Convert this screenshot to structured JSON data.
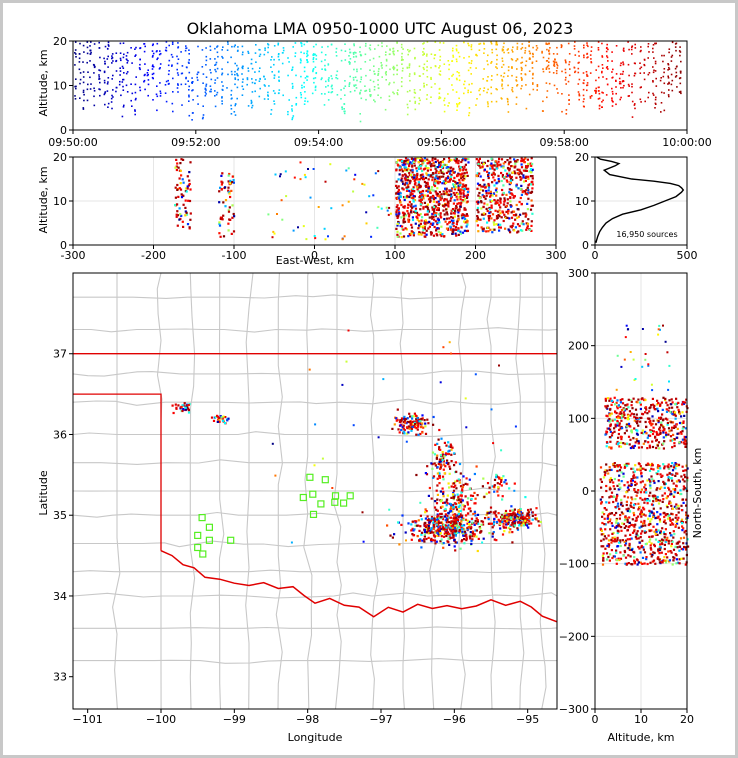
{
  "title": "Oklahoma LMA 0950-1000 UTC August 06, 2023",
  "source_count_label": "16,950 sources",
  "chart_data": [
    {
      "panel": "time-altitude",
      "type": "scatter",
      "ylabel": "Altitude, km",
      "xlim": [
        "09:50:00",
        "10:00:00"
      ],
      "ylim": [
        0,
        20
      ],
      "xticks": [
        "09:50:00",
        "09:52:00",
        "09:54:00",
        "09:56:00",
        "09:58:00",
        "10:00:00"
      ],
      "yticks": [
        0,
        10,
        20
      ],
      "color_encoding": "time (blue early to red late)",
      "note": "dense vertical streaks of sources at approximately 2-20 km throughout the period"
    },
    {
      "panel": "east-west-altitude",
      "type": "scatter",
      "xlabel": "East-West, km",
      "ylabel": "Altitude, km",
      "xlim": [
        -300,
        300
      ],
      "ylim": [
        0,
        20
      ],
      "xticks": [
        -300,
        -200,
        -100,
        0,
        100,
        200,
        300
      ],
      "yticks": [
        0,
        10,
        20
      ],
      "clusters": [
        {
          "x_range": [
            -175,
            -155
          ],
          "alt_range": [
            3,
            20
          ]
        },
        {
          "x_range": [
            -120,
            -100
          ],
          "alt_range": [
            2,
            17
          ]
        },
        {
          "x_range": [
            100,
            190
          ],
          "alt_range": [
            2,
            20
          ]
        },
        {
          "x_range": [
            200,
            270
          ],
          "alt_range": [
            3,
            20
          ]
        }
      ]
    },
    {
      "panel": "altitude-histogram",
      "type": "line",
      "xlim": [
        0,
        500
      ],
      "ylim": [
        0,
        20
      ],
      "xticks": [
        0,
        500
      ],
      "yticks": [
        0,
        10,
        20
      ],
      "altitude": [
        0.5,
        1,
        2,
        3,
        4,
        5,
        6,
        7,
        8,
        9,
        10,
        11,
        12,
        12.5,
        13,
        13.5,
        14,
        14.5,
        15,
        16,
        17,
        18,
        18.5,
        19,
        19.5,
        20
      ],
      "count": [
        5,
        8,
        15,
        25,
        40,
        60,
        95,
        150,
        250,
        320,
        380,
        440,
        470,
        480,
        470,
        455,
        410,
        320,
        200,
        80,
        50,
        110,
        130,
        90,
        30,
        10
      ]
    },
    {
      "panel": "plan-view",
      "type": "scatter",
      "xlabel": "Longitude",
      "ylabel": "Latitude",
      "xlim": [
        -101.2,
        -94.6
      ],
      "ylim": [
        32.6,
        38.0
      ],
      "xticks": [
        -101,
        -100,
        -99,
        -98,
        -97,
        -96,
        -95
      ],
      "yticks": [
        33,
        34,
        35,
        36,
        37
      ],
      "clusters": [
        {
          "lon": -96.1,
          "lat": 34.85,
          "n": 420,
          "spread": [
            0.55,
            0.2
          ]
        },
        {
          "lon": -95.2,
          "lat": 34.97,
          "n": 220,
          "spread": [
            0.3,
            0.12
          ]
        },
        {
          "lon": -96.0,
          "lat": 35.2,
          "n": 180,
          "spread": [
            0.3,
            0.35
          ]
        },
        {
          "lon": -96.6,
          "lat": 36.15,
          "n": 120,
          "spread": [
            0.25,
            0.12
          ]
        },
        {
          "lon": -96.2,
          "lat": 35.7,
          "n": 90,
          "spread": [
            0.2,
            0.25
          ]
        },
        {
          "lon": -99.2,
          "lat": 36.2,
          "n": 30,
          "spread": [
            0.1,
            0.06
          ]
        },
        {
          "lon": -99.7,
          "lat": 36.35,
          "n": 30,
          "spread": [
            0.12,
            0.08
          ]
        },
        {
          "lon": -95.4,
          "lat": 35.4,
          "n": 40,
          "spread": [
            0.25,
            0.15
          ]
        }
      ],
      "stations": [
        [
          -97.97,
          35.47
        ],
        [
          -97.76,
          35.44
        ],
        [
          -97.93,
          35.26
        ],
        [
          -98.06,
          35.22
        ],
        [
          -97.62,
          35.24
        ],
        [
          -97.82,
          35.14
        ],
        [
          -97.92,
          35.01
        ],
        [
          -97.51,
          35.15
        ],
        [
          -97.42,
          35.24
        ],
        [
          -97.63,
          35.16
        ],
        [
          -99.44,
          34.97
        ],
        [
          -99.34,
          34.85
        ],
        [
          -99.5,
          34.75
        ],
        [
          -99.34,
          34.69
        ],
        [
          -99.05,
          34.69
        ],
        [
          -99.5,
          34.6
        ],
        [
          -99.43,
          34.52
        ]
      ]
    },
    {
      "panel": "altitude-north-south",
      "type": "scatter",
      "xlabel": "Altitude, km",
      "ylabel": "North-South, km",
      "xlim": [
        0,
        20
      ],
      "ylim": [
        -300,
        300
      ],
      "xticks": [
        0,
        10,
        20
      ],
      "yticks": [
        -300,
        -200,
        -100,
        0,
        100,
        200,
        300
      ],
      "clusters": [
        {
          "ns_range": [
            -100,
            40
          ],
          "alt_range": [
            1,
            20
          ]
        },
        {
          "ns_range": [
            60,
            130
          ],
          "alt_range": [
            2,
            20
          ]
        }
      ]
    }
  ]
}
